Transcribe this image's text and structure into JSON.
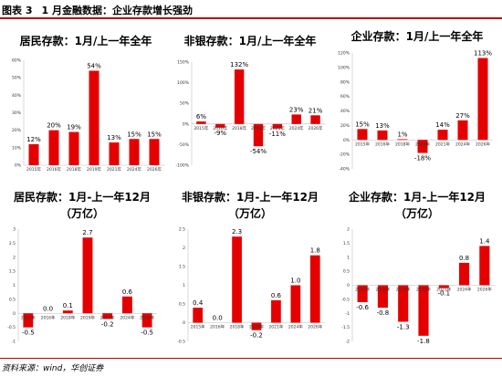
{
  "figure": {
    "title": "图表 3",
    "subtitle": "1 月金融数据：企业存款增长强劲",
    "source": "资料来源：wind，华创证券"
  },
  "chart_data": [
    {
      "type": "bar",
      "title": "居民存款：1月/上一年全年",
      "subtitle": "",
      "categories": [
        "2015年",
        "2016年",
        "2018年",
        "2019年",
        "2021年",
        "2024年",
        "2026年"
      ],
      "values": [
        12,
        20,
        19,
        54,
        13,
        15,
        15
      ],
      "labels": [
        "12%",
        "20%",
        "19%",
        "54%",
        "13%",
        "15%",
        "15%"
      ],
      "yticks": [
        "0%",
        "10%",
        "20%",
        "30%",
        "40%",
        "50%",
        "60%"
      ],
      "ylim": [
        0,
        60
      ],
      "color": "#e50000"
    },
    {
      "type": "bar",
      "title": "非银存款：1月/上一年全年",
      "subtitle": "",
      "categories": [
        "2015年",
        "2016年",
        "2018年",
        "2019年",
        "2021年",
        "2024年",
        "2026年"
      ],
      "values": [
        6,
        -9,
        132,
        -54,
        -11,
        23,
        21
      ],
      "labels": [
        "6%",
        "-9%",
        "132%",
        "-54%",
        "-11%",
        "23%",
        "21%"
      ],
      "yticks": [
        "-100%",
        "-50%",
        "0%",
        "50%",
        "100%",
        "150%"
      ],
      "ylim": [
        -100,
        150
      ],
      "color": "#e50000"
    },
    {
      "type": "bar",
      "title": "企业存款：1月/上一年全年",
      "subtitle": "",
      "categories": [
        "2015年",
        "2016年",
        "2018年",
        "2019年",
        "2021年",
        "2024年",
        "2026年"
      ],
      "values": [
        15,
        13,
        1,
        -18,
        14,
        27,
        113
      ],
      "labels": [
        "15%",
        "13%",
        "1%",
        "-18%",
        "14%",
        "27%",
        "113%"
      ],
      "yticks": [
        "-40%",
        "-20%",
        "0%",
        "20%",
        "40%",
        "60%",
        "80%",
        "100%",
        "120%"
      ],
      "ylim": [
        -40,
        120
      ],
      "color": "#e50000"
    },
    {
      "type": "bar",
      "title": "居民存款：1月-上一年12月",
      "subtitle": "（万亿）",
      "categories": [
        "2015年",
        "2016年",
        "2018年",
        "2019年",
        "2021年",
        "2024年",
        "2026年"
      ],
      "values": [
        -0.5,
        0.0,
        0.1,
        2.7,
        -0.2,
        0.6,
        -0.5
      ],
      "labels": [
        "-0.5",
        "0.0",
        "0.1",
        "2.7",
        "-0.2",
        "0.6",
        "-0.5"
      ],
      "yticks": [
        "-1",
        "-0.5",
        "0",
        "0.5",
        "1",
        "1.5",
        "2",
        "2.5",
        "3"
      ],
      "ylim": [
        -1,
        3
      ],
      "color": "#e50000"
    },
    {
      "type": "bar",
      "title": "非银存款：1月-上一年12月",
      "subtitle": "（万亿）",
      "categories": [
        "2015年",
        "2016年",
        "2018年",
        "2019年",
        "2021年",
        "2024年",
        "2026年"
      ],
      "values": [
        0.4,
        0.0,
        2.3,
        -0.2,
        0.6,
        1.0,
        1.8
      ],
      "labels": [
        "0.4",
        "0.0",
        "2.3",
        "-0.2",
        "0.6",
        "1.0",
        "1.8"
      ],
      "yticks": [
        "-0.5",
        "0",
        "0.5",
        "1",
        "1.5",
        "2",
        "2.5"
      ],
      "ylim": [
        -0.5,
        2.5
      ],
      "color": "#e50000"
    },
    {
      "type": "bar",
      "title": "企业存款：1月-上一年12月",
      "subtitle": "（万亿）",
      "categories": [
        "2015年",
        "2016年",
        "2018年",
        "2019年",
        "2021年",
        "2024年",
        "2026年"
      ],
      "values": [
        -0.6,
        -0.8,
        -1.3,
        -1.8,
        -0.1,
        0.8,
        1.4
      ],
      "labels": [
        "-0.6",
        "-0.8",
        "-1.3",
        "-1.8",
        "-0.1",
        "0.8",
        "1.4"
      ],
      "yticks": [
        "-2",
        "-1.5",
        "-1",
        "-0.5",
        "0",
        "0.5",
        "1",
        "1.5",
        "2"
      ],
      "ylim": [
        -2,
        2
      ],
      "color": "#e50000"
    }
  ]
}
